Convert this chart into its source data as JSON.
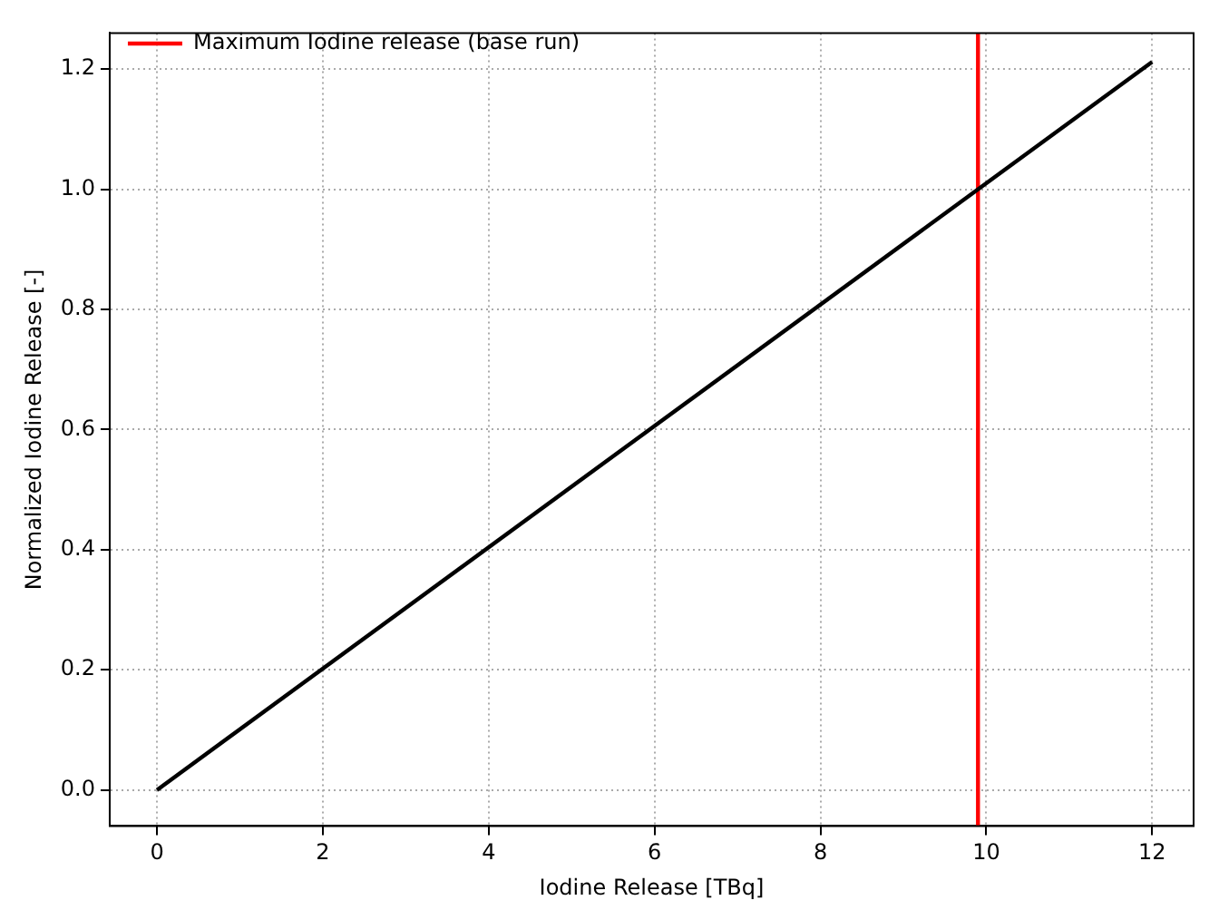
{
  "chart_data": {
    "type": "line",
    "xlabel": "Iodine Release [TBq]",
    "ylabel": "Normalized Iodine Release [-]",
    "x": [
      0,
      12
    ],
    "series": [
      {
        "color": "#000000",
        "values": [
          0,
          1.212
        ]
      },
      {
        "name": "Maximum Iodine release (base run)",
        "color": "#ff0000",
        "x": [
          9.9,
          9.9
        ],
        "values": [
          -0.06,
          1.26
        ]
      }
    ],
    "xlim": [
      -0.57,
      12.5
    ],
    "ylim": [
      -0.06,
      1.26
    ],
    "xticks": [
      0,
      2,
      4,
      6,
      8,
      10,
      12
    ],
    "yticks": [
      {
        "value": 0,
        "label": "0.0"
      },
      {
        "value": 0.2,
        "label": "0.2"
      },
      {
        "value": 0.4,
        "label": "0.4"
      },
      {
        "value": 0.6,
        "label": "0.6"
      },
      {
        "value": 0.8,
        "label": "0.8"
      },
      {
        "value": 1,
        "label": "1.0"
      },
      {
        "value": 1.2,
        "label": "1.2"
      }
    ],
    "grid": true,
    "legend": "top left",
    "marker": "none",
    "line_style": "solid"
  }
}
